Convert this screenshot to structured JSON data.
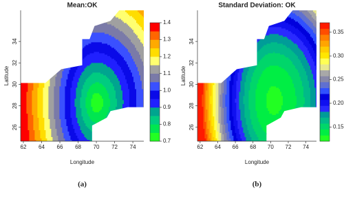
{
  "chart_data": [
    {
      "type": "contour",
      "title": "Mean:OK",
      "xlabel": "Longitude",
      "ylabel": "Latitude",
      "caption": "(a)",
      "xlim": [
        61.7,
        75.2
      ],
      "ylim": [
        24.7,
        36.9
      ],
      "xticks": [
        62,
        64,
        66,
        68,
        70,
        72,
        74
      ],
      "yticks": [
        26,
        28,
        30,
        32,
        34
      ],
      "levels": [
        0.7,
        0.75,
        0.8,
        0.85,
        0.9,
        0.95,
        1.0,
        1.05,
        1.1,
        1.15,
        1.2,
        1.25,
        1.3,
        1.35,
        1.4
      ],
      "colors": [
        "#22ff22",
        "#00e650",
        "#00cc80",
        "#00a58f",
        "#2020ff",
        "#0a0ae8",
        "#3a50ff",
        "#7a7aa8",
        "#a0a0a0",
        "#ffff70",
        "#ffdd00",
        "#ffaa00",
        "#ff6600",
        "#ff0000"
      ],
      "cticks": [
        0.7,
        0.8,
        0.9,
        {
          "value": 1.0,
          "label": "1.0"
        },
        1.1,
        1.2,
        1.3,
        1.4
      ]
    },
    {
      "type": "contour",
      "title": "Standard Deviation: OK",
      "xlabel": "Longitude",
      "ylabel": "Latitude",
      "caption": "(b)",
      "xlim": [
        61.7,
        75.2
      ],
      "ylim": [
        24.7,
        36.9
      ],
      "xticks": [
        62,
        64,
        66,
        68,
        70,
        72,
        74
      ],
      "yticks": [
        26,
        28,
        30,
        32,
        34
      ],
      "levels": [
        0.12,
        0.1325,
        0.145,
        0.1575,
        0.17,
        0.1825,
        0.195,
        0.2075,
        0.22,
        0.2325,
        0.245,
        0.2575,
        0.27,
        0.2825,
        0.295,
        0.3075,
        0.32,
        0.3325,
        0.345,
        0.3575,
        0.37
      ],
      "colors": [
        "#22ff22",
        "#00ee44",
        "#00d66a",
        "#00bb88",
        "#009c98",
        "#2a2aff",
        "#1010f0",
        "#0000dd",
        "#3050ff",
        "#6070d0",
        "#8888a8",
        "#a8a8a8",
        "#e8e890",
        "#ffff55",
        "#ffe600",
        "#ffcc00",
        "#ffa500",
        "#ff7f00",
        "#ff4d00",
        "#ff1a00"
      ],
      "cticks": [
        0.15,
        {
          "value": 0.2,
          "label": "0.20"
        },
        0.25,
        {
          "value": 0.3,
          "label": "0.30"
        },
        0.35
      ]
    }
  ]
}
